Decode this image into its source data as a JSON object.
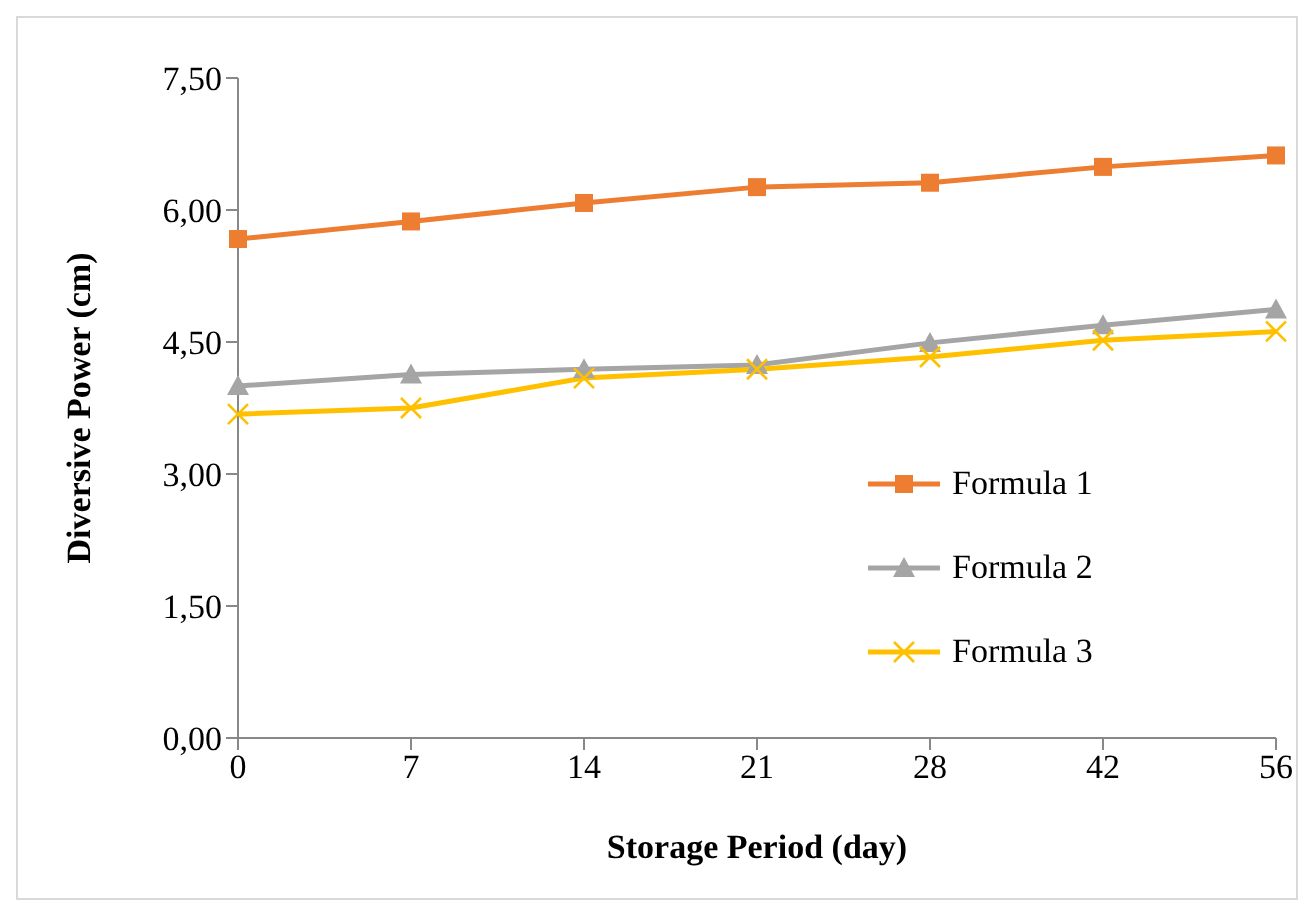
{
  "chart_data": {
    "type": "line",
    "xlabel": "Storage Period (day)",
    "ylabel": "Diversive Power (cm)",
    "categories": [
      "0",
      "7",
      "14",
      "21",
      "28",
      "42",
      "56"
    ],
    "series": [
      {
        "name": "Formula 1",
        "color": "#ed7d31",
        "marker": "square",
        "values": [
          5.67,
          5.87,
          6.08,
          6.26,
          6.31,
          6.49,
          6.62
        ]
      },
      {
        "name": "Formula 2",
        "color": "#a5a5a5",
        "marker": "triangle",
        "values": [
          4.0,
          4.13,
          4.19,
          4.24,
          4.49,
          4.69,
          4.87
        ]
      },
      {
        "name": "Formula 3",
        "color": "#ffc000",
        "marker": "cross",
        "values": [
          3.68,
          3.75,
          4.09,
          4.19,
          4.33,
          4.52,
          4.62
        ]
      }
    ],
    "ylim": [
      0,
      7.5
    ],
    "yticks": [
      {
        "value": 0,
        "label": "0,00"
      },
      {
        "value": 1.5,
        "label": "1,50"
      },
      {
        "value": 3,
        "label": "3,00"
      },
      {
        "value": 4.5,
        "label": "4,50"
      },
      {
        "value": 6,
        "label": "6,00"
      },
      {
        "value": 7.5,
        "label": "7,50"
      }
    ],
    "grid": false,
    "legend": "right",
    "line_style": "solid"
  }
}
